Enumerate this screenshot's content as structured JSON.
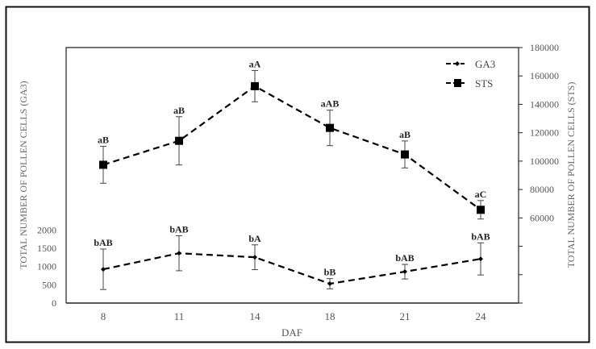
{
  "chart_data": {
    "type": "line",
    "title": "",
    "xlabel": "DAF",
    "ylabel_left": "TOTAL NUMBER OF POLLEN CELLS (GA3)",
    "ylabel_right": "TOTAL NUMBER OF POLLEN CELLS (STS)",
    "categories": [
      "8",
      "11",
      "14",
      "18",
      "21",
      "24"
    ],
    "y_left": {
      "range": [
        0,
        7000
      ],
      "ticks": [
        0,
        500,
        1000,
        1500,
        2000
      ]
    },
    "y_right": {
      "range": [
        0,
        180000
      ],
      "tick_step": 20000,
      "labeled_ticks": [
        60000,
        80000,
        100000,
        120000,
        140000,
        160000,
        180000
      ]
    },
    "legend_position": "top-right",
    "grid": false,
    "series": [
      {
        "name": "GA3",
        "axis": "left",
        "marker": "diamond",
        "line": "dashed",
        "values": [
          925,
          1365,
          1255,
          530,
          860,
          1210
        ],
        "errors": [
          555,
          480,
          340,
          140,
          200,
          440
        ],
        "labels": [
          "bAB",
          "bAB",
          "bA",
          "bB",
          "bAB",
          "bAB"
        ]
      },
      {
        "name": "STS",
        "axis": "right",
        "marker": "square",
        "line": "dashed",
        "values": [
          97400,
          114300,
          152800,
          123400,
          104700,
          65700
        ],
        "errors": [
          13000,
          17000,
          11000,
          12500,
          9500,
          6500
        ],
        "labels": [
          "aB",
          "aB",
          "aA",
          "aAB",
          "aB",
          "aC"
        ]
      }
    ]
  }
}
